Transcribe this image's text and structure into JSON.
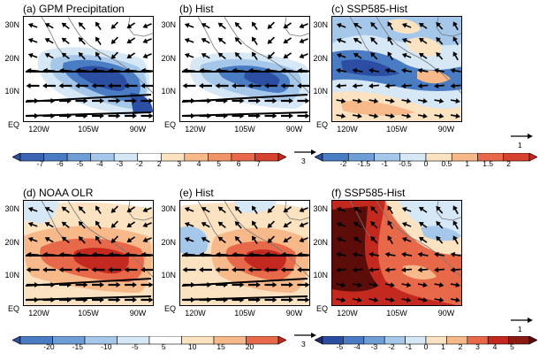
{
  "panels": [
    {
      "title": "(a) GPM Precipitation",
      "kind": "gpm"
    },
    {
      "title": "(b) Hist",
      "kind": "hist"
    },
    {
      "title": "(c) SSP585-Hist",
      "kind": "diffp"
    },
    {
      "title": "(d) NOAA OLR",
      "kind": "olr"
    },
    {
      "title": "(e) Hist",
      "kind": "olrh"
    },
    {
      "title": "(f) SSP585-Hist",
      "kind": "diffo"
    }
  ],
  "lat_labels": [
    "30N",
    "20N",
    "10N",
    "EQ"
  ],
  "lon_labels": [
    "120W",
    "105W",
    "90W"
  ],
  "colorbars": [
    {
      "labels": [
        "-7",
        "-6",
        "-5",
        "-4",
        "-3",
        "-2",
        "2",
        "3",
        "4",
        "5",
        "6",
        "7"
      ]
    },
    {
      "labels": [
        "-2",
        "-1.5",
        "-1",
        "-0.5",
        "0",
        "0.5",
        "1",
        "1.5",
        "2"
      ]
    },
    {
      "labels": [
        "-20",
        "-15",
        "-10",
        "-5",
        "5",
        "10",
        "15",
        "20"
      ]
    },
    {
      "labels": [
        "-5",
        "-4",
        "-3",
        "-2",
        "-1",
        "0",
        "1",
        "2",
        "3",
        "4",
        "5"
      ]
    }
  ],
  "reference_vectors": [
    {
      "label": "3"
    },
    {
      "label": "1"
    },
    {
      "label": "3"
    },
    {
      "label": "1"
    }
  ],
  "colors": {
    "blue_dark": "#2b4ea3",
    "blue_mid": "#4a7cc4",
    "blue_light": "#a5c8ea",
    "blue_pale": "#d6e8f6",
    "orange_pale": "#fbe3c2",
    "orange_light": "#f7b98a",
    "red_mid": "#e8694a",
    "red_dark": "#c3291f",
    "maroon": "#5c0d0a"
  }
}
